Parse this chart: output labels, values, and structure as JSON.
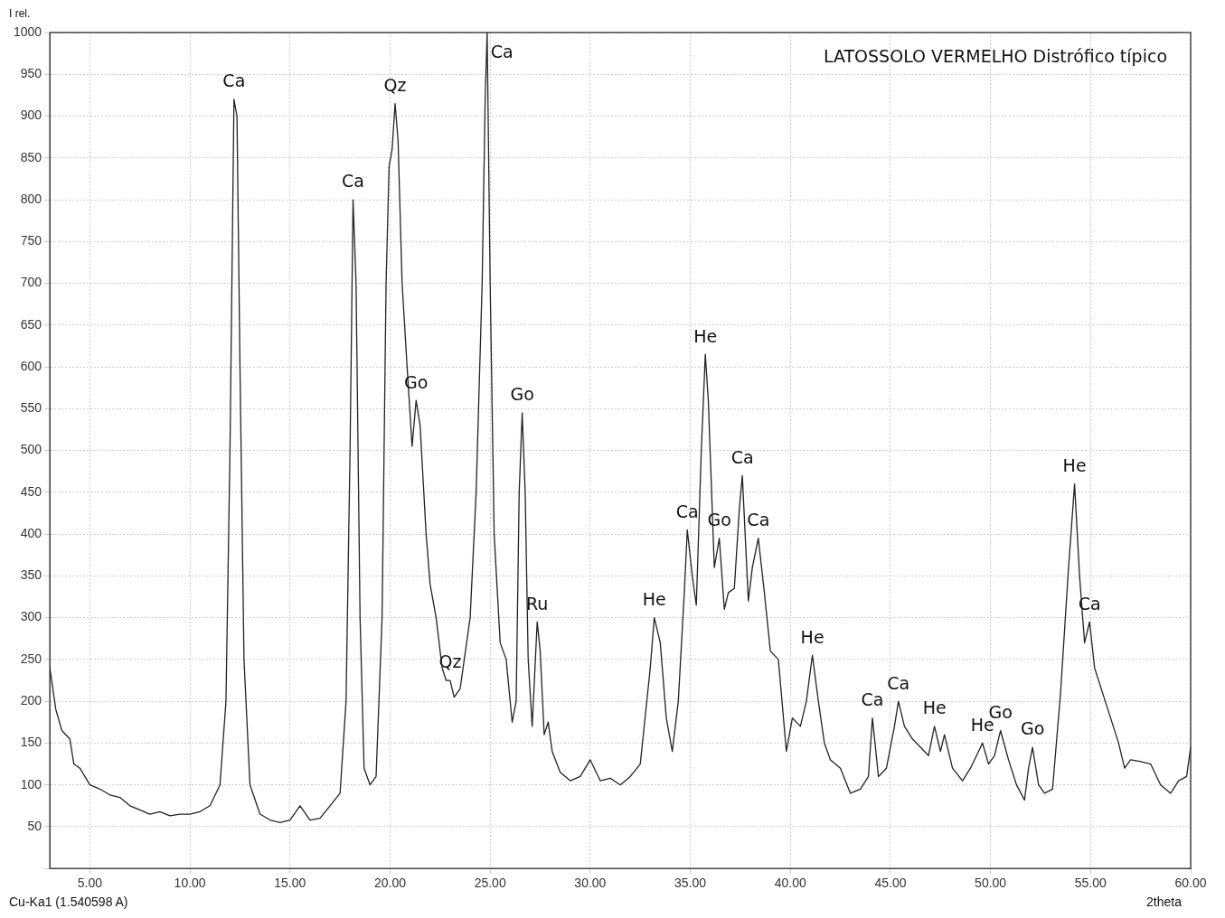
{
  "chart_data": {
    "type": "line",
    "title": "LATOSSOLO VERMELHO Distrófico típico",
    "xlabel": "2theta",
    "ylabel": "I rel.",
    "annotations": [
      "Cu-Ka1 (1.540598 A)",
      {
        "text": "Ca",
        "x": 12.2,
        "y": 920
      },
      {
        "text": "Ca",
        "x": 18.15,
        "y": 800
      },
      {
        "text": "Qz",
        "x": 20.25,
        "y": 915
      },
      {
        "text": "Go",
        "x": 21.3,
        "y": 560
      },
      {
        "text": "Qz",
        "x": 23.0,
        "y": 225
      },
      {
        "text": "Ca",
        "x": 24.85,
        "y": 1000
      },
      {
        "text": "Go",
        "x": 26.6,
        "y": 545
      },
      {
        "text": "Ru",
        "x": 27.35,
        "y": 295
      },
      {
        "text": "He",
        "x": 33.2,
        "y": 300
      },
      {
        "text": "Ca",
        "x": 34.85,
        "y": 405
      },
      {
        "text": "He",
        "x": 35.75,
        "y": 615
      },
      {
        "text": "Go",
        "x": 36.45,
        "y": 395
      },
      {
        "text": "Ca",
        "x": 37.6,
        "y": 470
      },
      {
        "text": "Ca",
        "x": 38.4,
        "y": 395
      },
      {
        "text": "He",
        "x": 41.1,
        "y": 255
      },
      {
        "text": "Ca",
        "x": 44.1,
        "y": 180
      },
      {
        "text": "Ca",
        "x": 45.4,
        "y": 200
      },
      {
        "text": "He",
        "x": 47.2,
        "y": 170
      },
      {
        "text": "He",
        "x": 49.6,
        "y": 150
      },
      {
        "text": "Go",
        "x": 50.5,
        "y": 165
      },
      {
        "text": "Go",
        "x": 52.1,
        "y": 145
      },
      {
        "text": "He",
        "x": 54.2,
        "y": 460
      },
      {
        "text": "Ca",
        "x": 54.95,
        "y": 295
      }
    ],
    "x": [
      3.0,
      3.3,
      3.6,
      4.0,
      4.2,
      4.5,
      5,
      5.5,
      6,
      6.5,
      7,
      7.5,
      8,
      8.5,
      9,
      9.5,
      10,
      10.5,
      11,
      11.5,
      11.8,
      12.0,
      12.2,
      12.35,
      12.5,
      12.7,
      13,
      13.5,
      14,
      14.5,
      15,
      15.5,
      16,
      16.5,
      17,
      17.5,
      17.8,
      18.0,
      18.15,
      18.3,
      18.5,
      18.7,
      19,
      19.3,
      19.6,
      19.8,
      19.95,
      20.1,
      20.25,
      20.4,
      20.6,
      20.85,
      21.1,
      21.3,
      21.5,
      21.8,
      22.0,
      22.3,
      22.6,
      22.8,
      23.0,
      23.2,
      23.5,
      24.0,
      24.3,
      24.6,
      24.75,
      24.85,
      25.0,
      25.2,
      25.5,
      25.8,
      26.1,
      26.3,
      26.45,
      26.6,
      26.75,
      26.9,
      27.1,
      27.35,
      27.5,
      27.7,
      27.9,
      28.1,
      28.5,
      29,
      29.5,
      30,
      30.5,
      31,
      31.5,
      32,
      32.5,
      33,
      33.2,
      33.5,
      33.8,
      34.1,
      34.4,
      34.7,
      34.85,
      35.1,
      35.3,
      35.55,
      35.75,
      35.9,
      36.2,
      36.45,
      36.7,
      36.9,
      37.2,
      37.45,
      37.6,
      37.9,
      38.1,
      38.4,
      38.7,
      39.0,
      39.4,
      39.8,
      40.1,
      40.5,
      40.8,
      41.1,
      41.4,
      41.7,
      42.0,
      42.5,
      43.0,
      43.5,
      43.9,
      44.1,
      44.4,
      44.8,
      45.2,
      45.4,
      45.7,
      46.1,
      46.5,
      46.9,
      47.2,
      47.5,
      47.7,
      48.1,
      48.6,
      49.0,
      49.4,
      49.6,
      49.9,
      50.2,
      50.5,
      50.9,
      51.3,
      51.7,
      51.9,
      52.1,
      52.4,
      52.7,
      53.1,
      53.5,
      53.9,
      54.2,
      54.45,
      54.7,
      54.95,
      55.2,
      55.6,
      56.0,
      56.4,
      56.7,
      57.0,
      57.5,
      58.0,
      58.5,
      59.0,
      59.4,
      59.8,
      60.0
    ],
    "series": [
      {
        "color": "#222222",
        "values": [
          240,
          190,
          165,
          155,
          125,
          120,
          100,
          95,
          88,
          85,
          75,
          70,
          65,
          68,
          63,
          65,
          65,
          68,
          75,
          100,
          200,
          500,
          920,
          900,
          600,
          250,
          100,
          65,
          58,
          55,
          58,
          75,
          58,
          60,
          75,
          90,
          200,
          500,
          800,
          700,
          300,
          120,
          100,
          110,
          300,
          700,
          840,
          860,
          915,
          870,
          700,
          600,
          505,
          560,
          530,
          400,
          340,
          300,
          240,
          225,
          225,
          205,
          215,
          300,
          450,
          700,
          920,
          1000,
          700,
          400,
          270,
          250,
          175,
          200,
          450,
          545,
          450,
          250,
          170,
          295,
          260,
          160,
          175,
          140,
          115,
          105,
          110,
          130,
          105,
          108,
          100,
          110,
          125,
          240,
          300,
          270,
          180,
          140,
          200,
          330,
          405,
          350,
          315,
          500,
          615,
          560,
          360,
          395,
          310,
          330,
          335,
          430,
          470,
          320,
          360,
          395,
          330,
          260,
          250,
          140,
          180,
          170,
          200,
          255,
          200,
          150,
          130,
          120,
          90,
          95,
          110,
          180,
          110,
          120,
          170,
          200,
          170,
          155,
          145,
          135,
          170,
          140,
          160,
          120,
          105,
          120,
          140,
          150,
          125,
          135,
          165,
          130,
          100,
          82,
          120,
          145,
          100,
          90,
          95,
          210,
          360,
          460,
          350,
          270,
          295,
          240,
          210,
          180,
          150,
          120,
          130,
          128,
          125,
          100,
          90,
          105,
          110,
          145
        ]
      }
    ],
    "xlim": [
      3,
      60
    ],
    "ylim": [
      0,
      1000
    ],
    "xticks": [
      {
        "value": 5,
        "label": "5.00"
      },
      {
        "value": 10,
        "label": "10.00"
      },
      {
        "value": 15,
        "label": "15.00"
      },
      {
        "value": 20,
        "label": "20.00"
      },
      {
        "value": 25,
        "label": "25.00"
      },
      {
        "value": 30,
        "label": "30.00"
      },
      {
        "value": 35,
        "label": "35.00"
      },
      {
        "value": 40,
        "label": "40.00"
      },
      {
        "value": 45,
        "label": "45.00"
      },
      {
        "value": 50,
        "label": "50.00"
      },
      {
        "value": 55,
        "label": "55.00"
      },
      {
        "value": 60,
        "label": "60.00"
      }
    ],
    "yticks": [
      {
        "value": 0,
        "label": null
      },
      50,
      100,
      150,
      200,
      250,
      300,
      350,
      400,
      450,
      500,
      550,
      600,
      650,
      700,
      750,
      800,
      850,
      900,
      950,
      1000
    ],
    "grid": true,
    "legend": false,
    "marker": "none",
    "line_style": "solid"
  }
}
